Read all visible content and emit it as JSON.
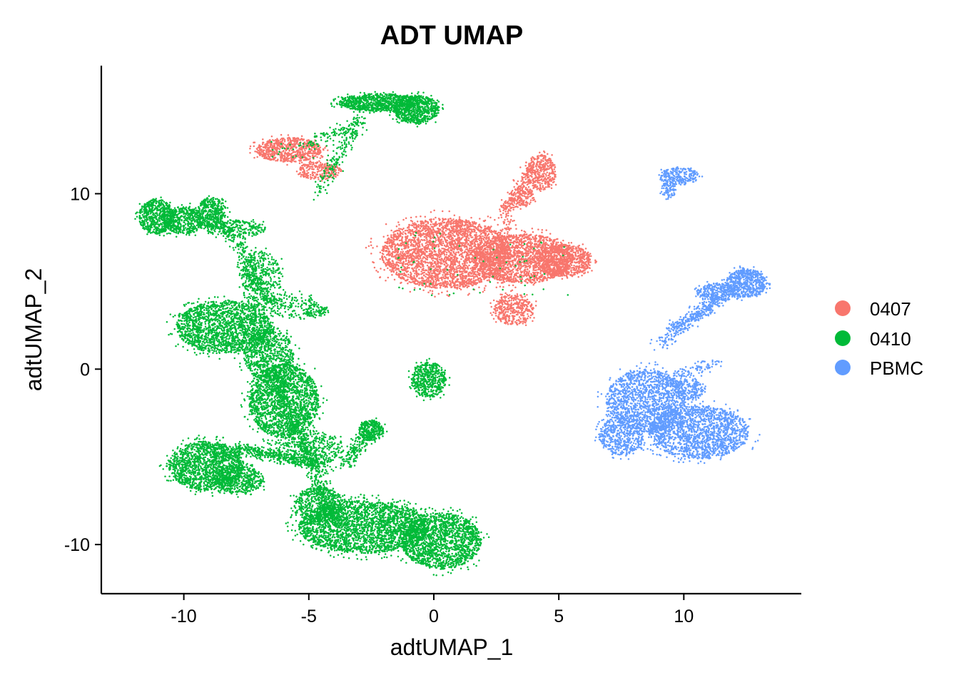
{
  "chart_data": {
    "type": "scatter",
    "title": "ADT UMAP",
    "xlabel": "adtUMAP_1",
    "ylabel": "adtUMAP_2",
    "xlim": [
      -13.3,
      14.7
    ],
    "ylim": [
      -12.8,
      17.3
    ],
    "xticks": [
      -10,
      -5,
      0,
      5,
      10
    ],
    "xtick_labels": [
      "-10",
      "-5",
      "0",
      "5",
      "10"
    ],
    "yticks": [
      -10,
      0,
      10
    ],
    "ytick_labels": [
      "-10",
      "0",
      "10"
    ],
    "grid": false,
    "legend_position": "right",
    "series": [
      {
        "name": "0407",
        "color": "#F8766D",
        "clusters": [
          {
            "cx": -5.8,
            "cy": 12.5,
            "rx": 1.3,
            "ry": 0.7,
            "n": 700
          },
          {
            "cx": -4.6,
            "cy": 11.3,
            "rx": 0.9,
            "ry": 0.5,
            "n": 250
          },
          {
            "cx": 0.5,
            "cy": 6.6,
            "rx": 2.6,
            "ry": 2.0,
            "n": 3200
          },
          {
            "cx": 3.6,
            "cy": 6.3,
            "rx": 2.0,
            "ry": 1.4,
            "n": 1800
          },
          {
            "cx": 5.2,
            "cy": 6.2,
            "rx": 1.1,
            "ry": 0.9,
            "n": 700
          },
          {
            "cx": 3.2,
            "cy": 3.4,
            "rx": 0.8,
            "ry": 0.9,
            "n": 400
          },
          {
            "cx": 4.3,
            "cy": 11.2,
            "rx": 0.6,
            "ry": 1.0,
            "n": 350
          },
          {
            "cx": 3.5,
            "cy": 9.8,
            "rx": 0.5,
            "ry": 0.6,
            "n": 150
          }
        ]
      },
      {
        "name": "0410",
        "color": "#00BA38",
        "clusters": [
          {
            "cx": -2.2,
            "cy": 15.2,
            "rx": 1.6,
            "ry": 0.5,
            "n": 900
          },
          {
            "cx": -0.7,
            "cy": 14.8,
            "rx": 0.9,
            "ry": 0.8,
            "n": 700
          },
          {
            "cx": -11.1,
            "cy": 8.7,
            "rx": 0.7,
            "ry": 1.0,
            "n": 600
          },
          {
            "cx": -10.0,
            "cy": 8.5,
            "rx": 0.8,
            "ry": 0.8,
            "n": 500
          },
          {
            "cx": -8.9,
            "cy": 8.9,
            "rx": 0.6,
            "ry": 0.9,
            "n": 300
          },
          {
            "cx": -8.4,
            "cy": 2.4,
            "rx": 1.9,
            "ry": 1.5,
            "n": 1800
          },
          {
            "cx": -6.6,
            "cy": 0.8,
            "rx": 1.0,
            "ry": 1.5,
            "n": 700
          },
          {
            "cx": -6.0,
            "cy": -1.8,
            "rx": 1.4,
            "ry": 2.1,
            "n": 1800
          },
          {
            "cx": -9.1,
            "cy": -5.5,
            "rx": 1.5,
            "ry": 1.4,
            "n": 1500
          },
          {
            "cx": -7.8,
            "cy": -6.3,
            "rx": 1.0,
            "ry": 0.8,
            "n": 500
          },
          {
            "cx": -2.8,
            "cy": -9.0,
            "rx": 2.6,
            "ry": 1.5,
            "n": 2600
          },
          {
            "cx": 0.3,
            "cy": -9.8,
            "rx": 1.6,
            "ry": 1.6,
            "n": 1700
          },
          {
            "cx": -4.6,
            "cy": -7.7,
            "rx": 1.0,
            "ry": 1.0,
            "n": 500
          },
          {
            "cx": -2.5,
            "cy": -3.5,
            "rx": 0.5,
            "ry": 0.6,
            "n": 250
          },
          {
            "cx": -0.2,
            "cy": -0.6,
            "rx": 0.7,
            "ry": 1.0,
            "n": 500
          },
          {
            "cx": -5.0,
            "cy": -4.5,
            "rx": 1.4,
            "ry": 1.0,
            "n": 400
          },
          {
            "cx": -6.9,
            "cy": 5.0,
            "rx": 0.8,
            "ry": 1.8,
            "n": 400
          },
          {
            "cx": -7.9,
            "cy": 8.0,
            "rx": 1.2,
            "ry": 0.5,
            "n": 250
          },
          {
            "cx": -5.6,
            "cy": 3.6,
            "rx": 1.0,
            "ry": 0.7,
            "n": 150
          },
          {
            "cx": -4.7,
            "cy": 3.3,
            "rx": 0.5,
            "ry": 0.3,
            "n": 80
          }
        ]
      },
      {
        "name": "PBMC",
        "color": "#619CFF",
        "clusters": [
          {
            "cx": 9.8,
            "cy": 11.0,
            "rx": 0.8,
            "ry": 0.5,
            "n": 250
          },
          {
            "cx": 9.4,
            "cy": 10.2,
            "rx": 0.3,
            "ry": 0.5,
            "n": 80
          },
          {
            "cx": 12.5,
            "cy": 4.9,
            "rx": 0.8,
            "ry": 0.8,
            "n": 600
          },
          {
            "cx": 11.3,
            "cy": 4.4,
            "rx": 0.8,
            "ry": 0.5,
            "n": 300
          },
          {
            "cx": 8.5,
            "cy": -1.8,
            "rx": 1.6,
            "ry": 1.8,
            "n": 1500
          },
          {
            "cx": 10.6,
            "cy": -3.6,
            "rx": 2.0,
            "ry": 1.5,
            "n": 1700
          },
          {
            "cx": 7.5,
            "cy": -3.8,
            "rx": 0.9,
            "ry": 1.1,
            "n": 500
          },
          {
            "cx": 10.2,
            "cy": -1.2,
            "rx": 0.6,
            "ry": 0.6,
            "n": 200
          }
        ]
      }
    ],
    "connections": [
      {
        "series": "0410",
        "from": [
          -4.6,
          10.1
        ],
        "to": [
          -2.9,
          14.4
        ],
        "n": 200
      },
      {
        "series": "0410",
        "from": [
          -5.2,
          12.7
        ],
        "to": [
          -3.3,
          13.8
        ],
        "n": 90
      },
      {
        "series": "0410",
        "from": [
          -9.0,
          9.5
        ],
        "to": [
          -7.2,
          6.0
        ],
        "n": 200
      },
      {
        "series": "0410",
        "from": [
          -7.6,
          6.0
        ],
        "to": [
          -6.6,
          3.8
        ],
        "n": 200
      },
      {
        "series": "0410",
        "from": [
          -6.4,
          -0.5
        ],
        "to": [
          -4.0,
          -8.5
        ],
        "n": 600
      },
      {
        "series": "0410",
        "from": [
          -8.0,
          -4.5
        ],
        "to": [
          -4.2,
          -5.5
        ],
        "n": 400
      },
      {
        "series": "0410",
        "from": [
          -3.5,
          -5.5
        ],
        "to": [
          -2.5,
          -3.2
        ],
        "n": 200
      },
      {
        "series": "0407",
        "from": [
          3.0,
          9.2
        ],
        "to": [
          4.0,
          11.6
        ],
        "n": 150
      },
      {
        "series": "0407",
        "from": [
          2.8,
          9.4
        ],
        "to": [
          3.0,
          8.0
        ],
        "n": 60
      },
      {
        "series": "PBMC",
        "from": [
          9.5,
          2.2
        ],
        "to": [
          11.4,
          4.0
        ],
        "n": 220
      },
      {
        "series": "PBMC",
        "from": [
          8.9,
          1.2
        ],
        "to": [
          11.2,
          3.8
        ],
        "n": 150
      },
      {
        "series": "PBMC",
        "from": [
          9.0,
          -0.8
        ],
        "to": [
          11.3,
          0.4
        ],
        "n": 120
      }
    ]
  }
}
